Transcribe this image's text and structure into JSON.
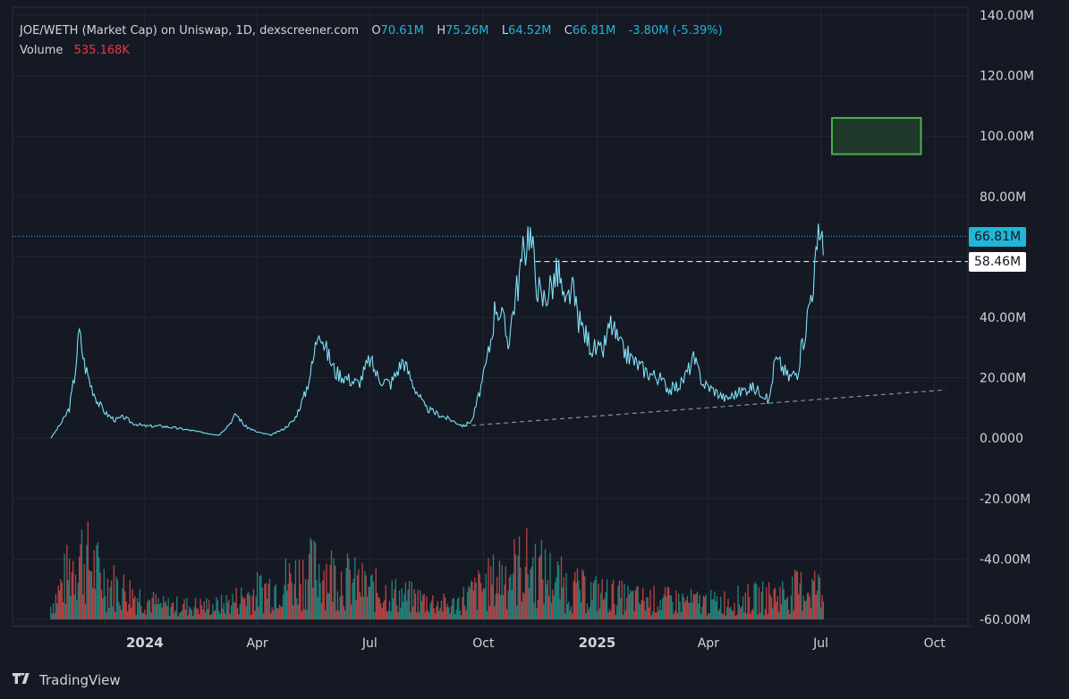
{
  "legend": {
    "title": "JOE/WETH (Market Cap) on Uniswap, 1D, dexscreener.com",
    "open_label": "O",
    "open": "70.61M",
    "high_label": "H",
    "high": "75.26M",
    "low_label": "L",
    "low": "64.52M",
    "close_label": "C",
    "close": "66.81M",
    "change": "-3.80M (-5.39%)",
    "volume_label": "Volume",
    "volume": "535.168K"
  },
  "price_tags": {
    "last": "66.81M",
    "reference": "58.46M"
  },
  "footer": {
    "brand": "TradingView",
    "logo_icon": "tradingview-logo-icon"
  },
  "colors": {
    "background": "#151924",
    "line": "#22b5d6",
    "volume_up": "#26a69a",
    "volume_down": "#ef5350",
    "box_fill": "#1f3a2a",
    "box_border": "#4caf50"
  },
  "chart_data": {
    "type": "line",
    "title": "JOE/WETH (Market Cap)",
    "xlabel": "",
    "ylabel": "",
    "yaxis_ticks": [
      "140.00M",
      "120.00M",
      "100.00M",
      "80.00M",
      "60.00M",
      "40.00M",
      "20.00M",
      "0.0000",
      "-20.00M",
      "-40.00M",
      "-60.00M"
    ],
    "ylim": [
      -60,
      140
    ],
    "xaxis_ticks": [
      {
        "label": "2024",
        "date": "2024-01-01"
      },
      {
        "label": "Apr",
        "date": "2024-04-01"
      },
      {
        "label": "Jul",
        "date": "2024-07-01"
      },
      {
        "label": "Oct",
        "date": "2024-10-01"
      },
      {
        "label": "2025",
        "date": "2025-01-01"
      },
      {
        "label": "Apr",
        "date": "2025-04-01"
      },
      {
        "label": "Jul",
        "date": "2025-07-01"
      },
      {
        "label": "Oct",
        "date": "2025-10-01"
      }
    ],
    "xlim": [
      "2023-09-16",
      "2025-10-28"
    ],
    "grid": true,
    "series": [
      {
        "name": "Market Cap (M)",
        "points": [
          [
            "2023-10-17",
            0
          ],
          [
            "2023-10-22",
            3
          ],
          [
            "2023-10-27",
            6
          ],
          [
            "2023-11-01",
            10
          ],
          [
            "2023-11-05",
            20
          ],
          [
            "2023-11-09",
            35
          ],
          [
            "2023-11-13",
            25
          ],
          [
            "2023-11-18",
            18
          ],
          [
            "2023-11-24",
            12
          ],
          [
            "2023-12-01",
            8
          ],
          [
            "2023-12-08",
            6
          ],
          [
            "2023-12-15",
            7
          ],
          [
            "2023-12-22",
            5
          ],
          [
            "2024-01-01",
            4
          ],
          [
            "2024-01-15",
            4
          ],
          [
            "2024-02-01",
            3
          ],
          [
            "2024-02-15",
            2
          ],
          [
            "2024-03-01",
            1
          ],
          [
            "2024-03-10",
            5
          ],
          [
            "2024-03-15",
            8
          ],
          [
            "2024-03-22",
            4
          ],
          [
            "2024-04-01",
            2
          ],
          [
            "2024-04-12",
            1
          ],
          [
            "2024-04-22",
            3
          ],
          [
            "2024-05-01",
            6
          ],
          [
            "2024-05-10",
            15
          ],
          [
            "2024-05-16",
            25
          ],
          [
            "2024-05-21",
            38
          ],
          [
            "2024-05-26",
            30
          ],
          [
            "2024-06-03",
            22
          ],
          [
            "2024-06-12",
            20
          ],
          [
            "2024-06-22",
            18
          ],
          [
            "2024-07-01",
            26
          ],
          [
            "2024-07-08",
            20
          ],
          [
            "2024-07-18",
            18
          ],
          [
            "2024-07-28",
            26
          ],
          [
            "2024-08-05",
            18
          ],
          [
            "2024-08-15",
            10
          ],
          [
            "2024-08-25",
            8
          ],
          [
            "2024-09-05",
            6
          ],
          [
            "2024-09-15",
            4
          ],
          [
            "2024-09-22",
            6
          ],
          [
            "2024-10-01",
            20
          ],
          [
            "2024-10-06",
            30
          ],
          [
            "2024-10-11",
            45
          ],
          [
            "2024-10-16",
            40
          ],
          [
            "2024-10-21",
            32
          ],
          [
            "2024-10-26",
            45
          ],
          [
            "2024-11-02",
            60
          ],
          [
            "2024-11-07",
            70
          ],
          [
            "2024-11-12",
            55
          ],
          [
            "2024-11-17",
            45
          ],
          [
            "2024-11-24",
            50
          ],
          [
            "2024-12-01",
            55
          ],
          [
            "2024-12-06",
            42
          ],
          [
            "2024-12-11",
            50
          ],
          [
            "2024-12-18",
            38
          ],
          [
            "2024-12-28",
            30
          ],
          [
            "2025-01-05",
            28
          ],
          [
            "2025-01-12",
            38
          ],
          [
            "2025-01-20",
            30
          ],
          [
            "2025-02-01",
            25
          ],
          [
            "2025-02-10",
            22
          ],
          [
            "2025-02-20",
            20
          ],
          [
            "2025-03-01",
            16
          ],
          [
            "2025-03-10",
            18
          ],
          [
            "2025-03-20",
            26
          ],
          [
            "2025-03-28",
            18
          ],
          [
            "2025-04-05",
            16
          ],
          [
            "2025-04-15",
            13
          ],
          [
            "2025-04-25",
            15
          ],
          [
            "2025-05-05",
            17
          ],
          [
            "2025-05-15",
            15
          ],
          [
            "2025-05-20",
            12
          ],
          [
            "2025-05-25",
            26
          ],
          [
            "2025-05-30",
            24
          ],
          [
            "2025-06-05",
            20
          ],
          [
            "2025-06-12",
            22
          ],
          [
            "2025-06-18",
            35
          ],
          [
            "2025-06-23",
            48
          ],
          [
            "2025-06-27",
            58
          ],
          [
            "2025-07-01",
            70
          ],
          [
            "2025-07-03",
            66.81
          ]
        ]
      }
    ],
    "volume_series": {
      "name": "Volume",
      "y_baseline": -60,
      "profile": [
        [
          "2023-10-17",
          8
        ],
        [
          "2023-11-09",
          40
        ],
        [
          "2023-12-01",
          22
        ],
        [
          "2024-01-15",
          8
        ],
        [
          "2024-03-01",
          8
        ],
        [
          "2024-05-21",
          30
        ],
        [
          "2024-07-01",
          18
        ],
        [
          "2024-09-05",
          8
        ],
        [
          "2024-10-21",
          28
        ],
        [
          "2024-11-07",
          32
        ],
        [
          "2024-12-11",
          18
        ],
        [
          "2025-02-01",
          12
        ],
        [
          "2025-04-05",
          10
        ],
        [
          "2025-05-25",
          14
        ],
        [
          "2025-06-27",
          20
        ],
        [
          "2025-07-03",
          14
        ]
      ]
    },
    "trendline": [
      [
        "2024-09-15",
        4
      ],
      [
        "2025-10-10",
        16
      ]
    ],
    "reference_line": {
      "from": "2024-11-12",
      "to": "2025-10-28",
      "y": 58.46
    },
    "last_price_line": {
      "y": 66.81
    },
    "target_box": {
      "x0": "2025-07-10",
      "x1": "2025-09-20",
      "y0": 94,
      "y1": 106
    }
  }
}
